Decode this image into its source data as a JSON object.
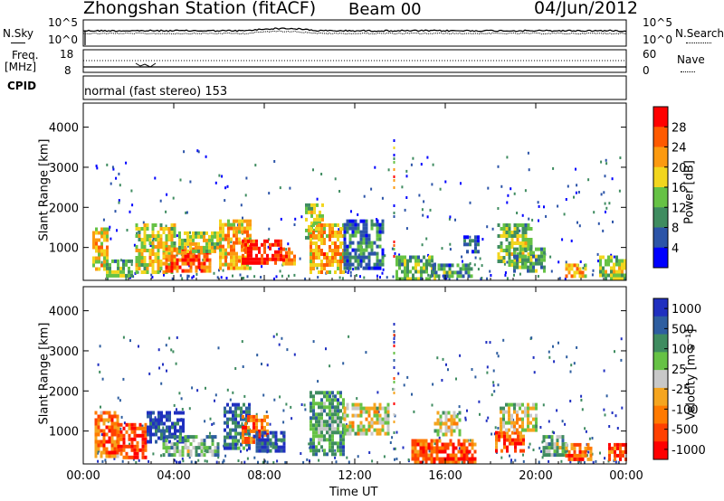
{
  "header": {
    "station": "Zhongshan Station (fitACF)",
    "beam": "Beam 00",
    "date": "04/Jun/2012"
  },
  "left_labels": {
    "nsky": "N.Sky",
    "freq": "Freq.",
    "freq_unit": "[MHz]",
    "cpid": "CPID"
  },
  "right_labels": {
    "nsearch": "N.Search",
    "nave": "Nave"
  },
  "noise_axis": {
    "top": "10^5",
    "bottom": "10^0"
  },
  "freq_axis": {
    "top": "18",
    "bottom": "8"
  },
  "nave_axis": {
    "top": "60",
    "bottom": "0"
  },
  "cpid_text": "normal (fast stereo) 153",
  "colors": {
    "power": [
      "#0000ff",
      "#2c54a8",
      "#3f8c60",
      "#66c245",
      "#f2d61e",
      "#fc9a10",
      "#ff5a00",
      "#ff0000"
    ],
    "velocity": [
      "#2030c0",
      "#2e5ea0",
      "#3f8c60",
      "#66c245",
      "#c8c8c8",
      "#f5a51f",
      "#ff7a00",
      "#ff4000",
      "#ff0000"
    ]
  },
  "chart_data": [
    {
      "type": "heatmap",
      "name": "power-panel",
      "ylabel": "Slant Range [km]",
      "xlabel": "",
      "x_ticks": [
        "00:00",
        "04:00",
        "08:00",
        "12:00",
        "16:00",
        "20:00",
        "00:00"
      ],
      "y_ticks": [
        "1000",
        "2000",
        "3000",
        "4000"
      ],
      "xlim_hours": [
        0,
        24
      ],
      "ylim_km": [
        180,
        4600
      ],
      "colorbar_label": "Power [dB]",
      "colorbar_ticks": [
        "4",
        "8",
        "12",
        "16",
        "20",
        "24",
        "28"
      ],
      "blobs": [
        {
          "t0": 0.4,
          "t1": 1.1,
          "r0": 500,
          "r1": 1500,
          "v": 0.55
        },
        {
          "t0": 1.0,
          "t1": 2.2,
          "r0": 300,
          "r1": 700,
          "v": 0.35
        },
        {
          "t0": 2.3,
          "t1": 4.0,
          "r0": 400,
          "r1": 1600,
          "v": 0.5
        },
        {
          "t0": 3.5,
          "t1": 5.6,
          "r0": 450,
          "r1": 1000,
          "v": 0.75
        },
        {
          "t0": 4.2,
          "t1": 6.0,
          "r0": 900,
          "r1": 1400,
          "v": 0.45
        },
        {
          "t0": 6.0,
          "t1": 7.4,
          "r0": 500,
          "r1": 1700,
          "v": 0.6
        },
        {
          "t0": 7.0,
          "t1": 8.8,
          "r0": 600,
          "r1": 1200,
          "v": 0.9
        },
        {
          "t0": 8.8,
          "t1": 9.3,
          "r0": 600,
          "r1": 1000,
          "v": 0.7
        },
        {
          "t0": 9.8,
          "t1": 10.6,
          "r0": 1200,
          "r1": 2100,
          "v": 0.45
        },
        {
          "t0": 10.0,
          "t1": 11.5,
          "r0": 400,
          "r1": 1600,
          "v": 0.6
        },
        {
          "t0": 11.5,
          "t1": 13.3,
          "r0": 500,
          "r1": 1700,
          "v": 0.2
        },
        {
          "t0": 13.8,
          "t1": 15.5,
          "r0": 250,
          "r1": 800,
          "v": 0.35
        },
        {
          "t0": 15.3,
          "t1": 17.2,
          "r0": 250,
          "r1": 600,
          "v": 0.25
        },
        {
          "t0": 16.8,
          "t1": 17.5,
          "r0": 900,
          "r1": 1300,
          "v": 0.15
        },
        {
          "t0": 18.3,
          "t1": 19.8,
          "r0": 600,
          "r1": 1600,
          "v": 0.4
        },
        {
          "t0": 19.0,
          "t1": 20.4,
          "r0": 400,
          "r1": 1000,
          "v": 0.3
        },
        {
          "t0": 21.3,
          "t1": 22.2,
          "r0": 250,
          "r1": 600,
          "v": 0.6
        },
        {
          "t0": 22.8,
          "t1": 24.0,
          "r0": 250,
          "r1": 800,
          "v": 0.4
        }
      ]
    },
    {
      "type": "heatmap",
      "name": "velocity-panel",
      "ylabel": "Slant Range [km]",
      "xlabel": "Time UT",
      "x_ticks": [
        "00:00",
        "04:00",
        "08:00",
        "12:00",
        "16:00",
        "20:00",
        "00:00"
      ],
      "y_ticks": [
        "1000",
        "2000",
        "3000",
        "4000"
      ],
      "xlim_hours": [
        0,
        24
      ],
      "ylim_km": [
        180,
        4600
      ],
      "colorbar_label": "Velocity [m s⁻¹]",
      "colorbar_ticks": [
        "1000",
        "500",
        "100",
        "25",
        "-25",
        "-100",
        "-500",
        "-1000"
      ],
      "blobs": [
        {
          "t0": 0.5,
          "t1": 1.5,
          "r0": 400,
          "r1": 1500,
          "v": 0.7
        },
        {
          "t0": 1.5,
          "t1": 2.8,
          "r0": 300,
          "r1": 1200,
          "v": 0.8
        },
        {
          "t0": 2.8,
          "t1": 4.4,
          "r0": 700,
          "r1": 1500,
          "v": 0.05
        },
        {
          "t0": 3.5,
          "t1": 6.0,
          "r0": 400,
          "r1": 900,
          "v": 0.3
        },
        {
          "t0": 6.2,
          "t1": 7.4,
          "r0": 600,
          "r1": 1700,
          "v": 0.15
        },
        {
          "t0": 7.0,
          "t1": 8.2,
          "r0": 700,
          "r1": 1400,
          "v": 0.7
        },
        {
          "t0": 7.5,
          "t1": 8.9,
          "r0": 500,
          "r1": 1000,
          "v": 0.05
        },
        {
          "t0": 10.0,
          "t1": 11.5,
          "r0": 400,
          "r1": 2000,
          "v": 0.25
        },
        {
          "t0": 11.5,
          "t1": 13.5,
          "r0": 900,
          "r1": 1700,
          "v": 0.45
        },
        {
          "t0": 14.5,
          "t1": 17.3,
          "r0": 200,
          "r1": 800,
          "v": 0.75
        },
        {
          "t0": 15.5,
          "t1": 16.6,
          "r0": 900,
          "r1": 1500,
          "v": 0.45
        },
        {
          "t0": 18.2,
          "t1": 19.5,
          "r0": 500,
          "r1": 1000,
          "v": 0.78
        },
        {
          "t0": 18.4,
          "t1": 20.0,
          "r0": 1000,
          "r1": 1700,
          "v": 0.45
        },
        {
          "t0": 20.3,
          "t1": 21.3,
          "r0": 400,
          "r1": 900,
          "v": 0.3
        },
        {
          "t0": 21.3,
          "t1": 22.4,
          "r0": 300,
          "r1": 700,
          "v": 0.7
        },
        {
          "t0": 23.2,
          "t1": 24.0,
          "r0": 300,
          "r1": 700,
          "v": 0.75
        }
      ]
    }
  ]
}
